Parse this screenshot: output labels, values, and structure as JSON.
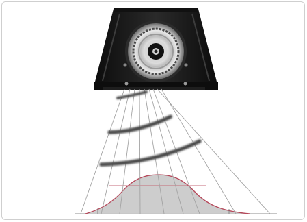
{
  "figure": {
    "colors": {
      "background": "#ffffff",
      "frame_border": "#cfcfcf",
      "housing_dark": "#141414",
      "housing_mid": "#2e2e2e",
      "reflector_light": "#d9d9d9",
      "reflector_dark": "#5a5a5a",
      "beam_line": "#9a9a9a",
      "wave_front": "#4a4a4a",
      "distribution_fill": "#c4c4c4",
      "distribution_curve": "#b5485a",
      "guide_line": "#c56a78",
      "ground": "#9a9a9a"
    },
    "icons": {
      "source": "ultrasonic-transducer-icon"
    }
  }
}
